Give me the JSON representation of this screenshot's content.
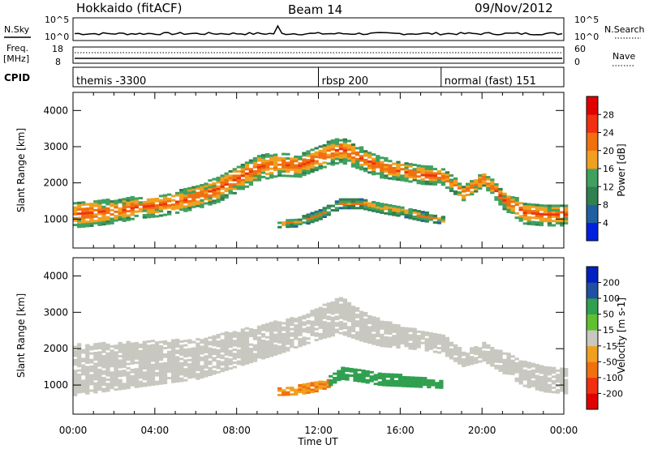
{
  "header": {
    "title_left": "Hokkaido (fitACF)",
    "title_center": "Beam 14",
    "title_right": "09/Nov/2012"
  },
  "noise_panel": {
    "left_label": "N.Sky",
    "right_label": "N.Search",
    "left_ticks": [
      "10^5",
      "10^0"
    ],
    "right_ticks": [
      "10^5",
      "10^0"
    ]
  },
  "freq_panel": {
    "left_label_1": "Freq.",
    "left_label_2": "[MHz]",
    "right_label": "Nave",
    "left_ticks": [
      "18",
      "8"
    ],
    "right_ticks": [
      "60",
      "0"
    ]
  },
  "cpid_panel": {
    "label": "CPID",
    "segments": [
      {
        "name": "themis -3300",
        "start_hour": 0.0
      },
      {
        "name": "rbsp 200",
        "start_hour": 12.0
      },
      {
        "name": "normal (fast) 151",
        "start_hour": 18.0
      }
    ]
  },
  "colors": {
    "power_scale": [
      "#0020e0",
      "#2060a0",
      "#308050",
      "#40a060",
      "#f0a020",
      "#f07010",
      "#f03010",
      "#e00000"
    ],
    "velocity_scale": [
      "#e00000",
      "#f03010",
      "#f07010",
      "#f0a020",
      "#c8c8c0",
      "#60c030",
      "#30a050",
      "#2050a0",
      "#0020c0"
    ],
    "ground_scatter": "#c8c8c0"
  },
  "chart_data": [
    {
      "type": "heatmap",
      "name": "power",
      "ylabel": "Slant Range [km]",
      "xlabel": "",
      "xlim": [
        0,
        24
      ],
      "ylim": [
        200,
        4500
      ],
      "yticks": [
        "1000",
        "2000",
        "3000",
        "4000"
      ],
      "colorbar_label": "Power [dB]",
      "colorbar_ticks": [
        "4",
        "8",
        "12",
        "16",
        "20",
        "24",
        "28"
      ],
      "colorbar_range": [
        0,
        32
      ],
      "bands": [
        {
          "x": [
            0,
            1,
            2,
            3,
            4,
            5,
            6,
            7,
            8,
            9,
            10,
            11,
            12,
            13,
            14,
            15,
            16,
            17,
            18,
            19,
            20,
            21,
            22,
            23,
            24
          ],
          "center": [
            1100,
            1150,
            1200,
            1300,
            1350,
            1450,
            1600,
            1800,
            2100,
            2400,
            2500,
            2450,
            2700,
            2900,
            2650,
            2400,
            2300,
            2200,
            2150,
            1700,
            2100,
            1500,
            1150,
            1100,
            1100
          ],
          "width": [
            700,
            700,
            650,
            600,
            600,
            600,
            650,
            700,
            700,
            700,
            650,
            600,
            650,
            700,
            600,
            550,
            500,
            500,
            450,
            400,
            400,
            500,
            600,
            600,
            600
          ],
          "power": 26
        },
        {
          "x": [
            10,
            11,
            12,
            13,
            14,
            15,
            16,
            17,
            18
          ],
          "center": [
            850,
            900,
            1100,
            1400,
            1400,
            1300,
            1200,
            1050,
            950
          ],
          "width": [
            200,
            250,
            250,
            250,
            250,
            300,
            300,
            250,
            200
          ],
          "power": 22
        }
      ]
    },
    {
      "type": "heatmap",
      "name": "velocity",
      "ylabel": "Slant Range [km]",
      "xlabel": "Time UT",
      "xlim": [
        0,
        24
      ],
      "ylim": [
        200,
        4500
      ],
      "xticks": [
        "00:00",
        "04:00",
        "08:00",
        "12:00",
        "16:00",
        "20:00",
        "00:00"
      ],
      "yticks": [
        "1000",
        "2000",
        "3000",
        "4000"
      ],
      "colorbar_label": "Velocity [m s-1]",
      "colorbar_ticks": [
        "-200",
        "-100",
        "-50",
        "-15",
        "15",
        "50",
        "100",
        "200"
      ],
      "colorbar_range": [
        -250,
        250
      ],
      "bands": [
        {
          "x": [
            0,
            2,
            4,
            6,
            8,
            10,
            11,
            12,
            13,
            14,
            15,
            16,
            17,
            18,
            19,
            20,
            21,
            22,
            23,
            24
          ],
          "center": [
            1400,
            1500,
            1600,
            1700,
            2000,
            2300,
            2450,
            2700,
            2900,
            2600,
            2400,
            2300,
            2200,
            2100,
            1700,
            1900,
            1600,
            1300,
            1150,
            1100
          ],
          "width": [
            1400,
            1300,
            1200,
            1100,
            1000,
            900,
            800,
            900,
            1000,
            800,
            700,
            600,
            500,
            500,
            400,
            500,
            600,
            700,
            700,
            700
          ],
          "velocity": 0
        },
        {
          "x": [
            10,
            11,
            12,
            12.5
          ],
          "center": [
            800,
            850,
            950,
            1050
          ],
          "width": [
            200,
            250,
            250,
            200
          ],
          "velocity": -50
        },
        {
          "x": [
            12.5,
            13,
            14,
            15,
            16,
            17,
            18
          ],
          "center": [
            1100,
            1300,
            1250,
            1150,
            1100,
            1050,
            1000
          ],
          "width": [
            250,
            300,
            350,
            350,
            300,
            250,
            200
          ],
          "velocity": 60
        }
      ]
    }
  ],
  "time_axis": {
    "label": "Time UT",
    "ticks": [
      "00:00",
      "04:00",
      "08:00",
      "12:00",
      "16:00",
      "20:00",
      "00:00"
    ]
  }
}
